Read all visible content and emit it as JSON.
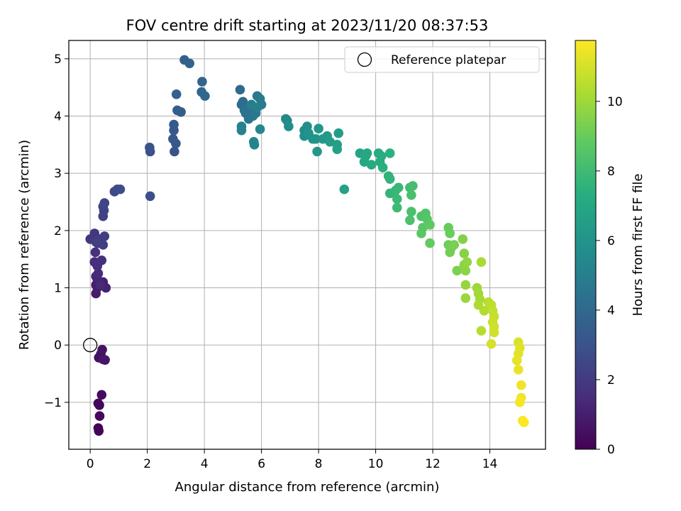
{
  "chart_data": {
    "type": "scatter",
    "title": "FOV centre drift starting at 2023/11/20 08:37:53",
    "xlabel": "Angular distance from reference (arcmin)",
    "ylabel": "Rotation from reference (arcmin)",
    "xlim": [
      -0.75,
      15.95
    ],
    "ylim": [
      -1.82,
      5.32
    ],
    "xticks": [
      0,
      2,
      4,
      6,
      8,
      10,
      12,
      14
    ],
    "yticks": [
      -1,
      0,
      1,
      2,
      3,
      4,
      5
    ],
    "xtick_labels": [
      "0",
      "2",
      "4",
      "6",
      "8",
      "10",
      "12",
      "14"
    ],
    "ytick_labels": [
      "−1",
      "0",
      "1",
      "2",
      "3",
      "4",
      "5"
    ],
    "grid": true,
    "legend": {
      "placement": "top-right",
      "label": "Reference platepar",
      "marker": "open-circle"
    },
    "reference_point": {
      "x": 0,
      "y": 0
    },
    "colorbar": {
      "label": "Hours from first FF file",
      "colormap": "viridis",
      "range": [
        0,
        11.75
      ],
      "ticks": [
        0,
        2,
        4,
        6,
        8,
        10
      ],
      "tick_labels": [
        "0",
        "2",
        "4",
        "6",
        "8",
        "10"
      ]
    },
    "points": [
      [
        0.28,
        -1.45
      ],
      [
        0.3,
        -1.5
      ],
      [
        0.28,
        -1.02
      ],
      [
        0.32,
        -1.05
      ],
      [
        0.33,
        -1.24
      ],
      [
        0.4,
        -0.87
      ],
      [
        0.3,
        -0.22
      ],
      [
        0.37,
        -0.16
      ],
      [
        0.42,
        -0.08
      ],
      [
        0.52,
        -0.26
      ],
      [
        0.45,
        -0.25
      ],
      [
        0.2,
        0.9
      ],
      [
        0.25,
        1.0
      ],
      [
        0.2,
        1.05
      ],
      [
        0.45,
        1.1
      ],
      [
        0.55,
        1.0
      ],
      [
        0.25,
        1.15
      ],
      [
        0.2,
        1.2
      ],
      [
        0.35,
        1.05
      ],
      [
        0.28,
        1.25
      ],
      [
        0.15,
        1.45
      ],
      [
        0.25,
        1.38
      ],
      [
        0.4,
        1.48
      ],
      [
        0.18,
        1.62
      ],
      [
        0.25,
        1.78
      ],
      [
        0.0,
        1.85
      ],
      [
        0.15,
        1.95
      ],
      [
        0.3,
        1.85
      ],
      [
        0.5,
        1.9
      ],
      [
        0.45,
        1.75
      ],
      [
        0.2,
        1.8
      ],
      [
        0.45,
        2.25
      ],
      [
        0.48,
        2.35
      ],
      [
        0.45,
        2.42
      ],
      [
        0.5,
        2.48
      ],
      [
        0.85,
        2.68
      ],
      [
        0.95,
        2.72
      ],
      [
        1.05,
        2.72
      ],
      [
        2.1,
        2.6
      ],
      [
        2.1,
        3.38
      ],
      [
        2.08,
        3.45
      ],
      [
        2.95,
        3.38
      ],
      [
        2.9,
        3.6
      ],
      [
        3.0,
        3.52
      ],
      [
        2.93,
        3.75
      ],
      [
        2.93,
        3.85
      ],
      [
        3.05,
        4.1
      ],
      [
        3.18,
        4.07
      ],
      [
        3.02,
        4.38
      ],
      [
        3.3,
        4.98
      ],
      [
        3.48,
        4.92
      ],
      [
        3.92,
        4.6
      ],
      [
        3.9,
        4.42
      ],
      [
        4.02,
        4.35
      ],
      [
        5.25,
        4.46
      ],
      [
        5.3,
        4.2
      ],
      [
        5.35,
        4.25
      ],
      [
        5.45,
        4.05
      ],
      [
        5.5,
        4.15
      ],
      [
        5.6,
        4.1
      ],
      [
        5.4,
        4.1
      ],
      [
        5.55,
        3.95
      ],
      [
        5.7,
        4.0
      ],
      [
        5.8,
        4.05
      ],
      [
        5.85,
        4.35
      ],
      [
        5.95,
        4.3
      ],
      [
        6.0,
        4.2
      ],
      [
        5.85,
        4.15
      ],
      [
        5.65,
        4.2
      ],
      [
        5.3,
        3.75
      ],
      [
        5.3,
        3.82
      ],
      [
        5.75,
        3.5
      ],
      [
        5.73,
        3.55
      ],
      [
        5.95,
        3.77
      ],
      [
        6.85,
        3.95
      ],
      [
        6.9,
        3.92
      ],
      [
        6.95,
        3.82
      ],
      [
        7.5,
        3.75
      ],
      [
        7.6,
        3.82
      ],
      [
        7.5,
        3.65
      ],
      [
        7.65,
        3.7
      ],
      [
        7.8,
        3.6
      ],
      [
        7.9,
        3.6
      ],
      [
        8.0,
        3.78
      ],
      [
        7.95,
        3.38
      ],
      [
        8.15,
        3.6
      ],
      [
        8.3,
        3.65
      ],
      [
        8.4,
        3.55
      ],
      [
        8.7,
        3.7
      ],
      [
        8.65,
        3.5
      ],
      [
        8.65,
        3.42
      ],
      [
        8.9,
        2.72
      ],
      [
        9.45,
        3.35
      ],
      [
        9.65,
        3.3
      ],
      [
        9.7,
        3.35
      ],
      [
        9.6,
        3.2
      ],
      [
        9.85,
        3.15
      ],
      [
        10.1,
        3.35
      ],
      [
        10.2,
        3.3
      ],
      [
        10.15,
        3.2
      ],
      [
        10.25,
        3.1
      ],
      [
        10.5,
        3.35
      ],
      [
        10.45,
        2.95
      ],
      [
        10.5,
        2.9
      ],
      [
        10.5,
        2.65
      ],
      [
        10.7,
        2.7
      ],
      [
        10.8,
        2.75
      ],
      [
        10.75,
        2.55
      ],
      [
        10.75,
        2.4
      ],
      [
        11.2,
        2.75
      ],
      [
        11.3,
        2.78
      ],
      [
        11.25,
        2.62
      ],
      [
        11.25,
        2.33
      ],
      [
        11.2,
        2.18
      ],
      [
        11.6,
        2.25
      ],
      [
        11.75,
        2.3
      ],
      [
        11.8,
        2.2
      ],
      [
        11.65,
        2.05
      ],
      [
        11.6,
        1.95
      ],
      [
        11.9,
        2.1
      ],
      [
        11.9,
        1.78
      ],
      [
        12.55,
        2.05
      ],
      [
        12.6,
        1.95
      ],
      [
        12.55,
        1.75
      ],
      [
        12.65,
        1.7
      ],
      [
        12.6,
        1.62
      ],
      [
        12.75,
        1.75
      ],
      [
        12.85,
        1.3
      ],
      [
        13.05,
        1.85
      ],
      [
        13.1,
        1.6
      ],
      [
        13.1,
        1.4
      ],
      [
        13.15,
        1.3
      ],
      [
        13.2,
        1.45
      ],
      [
        13.15,
        1.05
      ],
      [
        13.15,
        0.82
      ],
      [
        13.55,
        1.0
      ],
      [
        13.6,
        0.9
      ],
      [
        13.65,
        0.8
      ],
      [
        13.7,
        1.45
      ],
      [
        13.6,
        0.7
      ],
      [
        13.8,
        0.6
      ],
      [
        13.7,
        0.25
      ],
      [
        13.95,
        0.75
      ],
      [
        14.05,
        0.7
      ],
      [
        14.1,
        0.6
      ],
      [
        14.15,
        0.5
      ],
      [
        14.1,
        0.4
      ],
      [
        14.15,
        0.32
      ],
      [
        14.15,
        0.22
      ],
      [
        14.05,
        0.02
      ],
      [
        15.0,
        0.05
      ],
      [
        15.05,
        -0.05
      ],
      [
        15.0,
        -0.15
      ],
      [
        14.95,
        -0.27
      ],
      [
        15.0,
        -0.43
      ],
      [
        15.1,
        -0.7
      ],
      [
        15.1,
        -0.92
      ],
      [
        15.05,
        -1.0
      ],
      [
        15.15,
        -1.32
      ],
      [
        15.2,
        -1.35
      ]
    ]
  }
}
